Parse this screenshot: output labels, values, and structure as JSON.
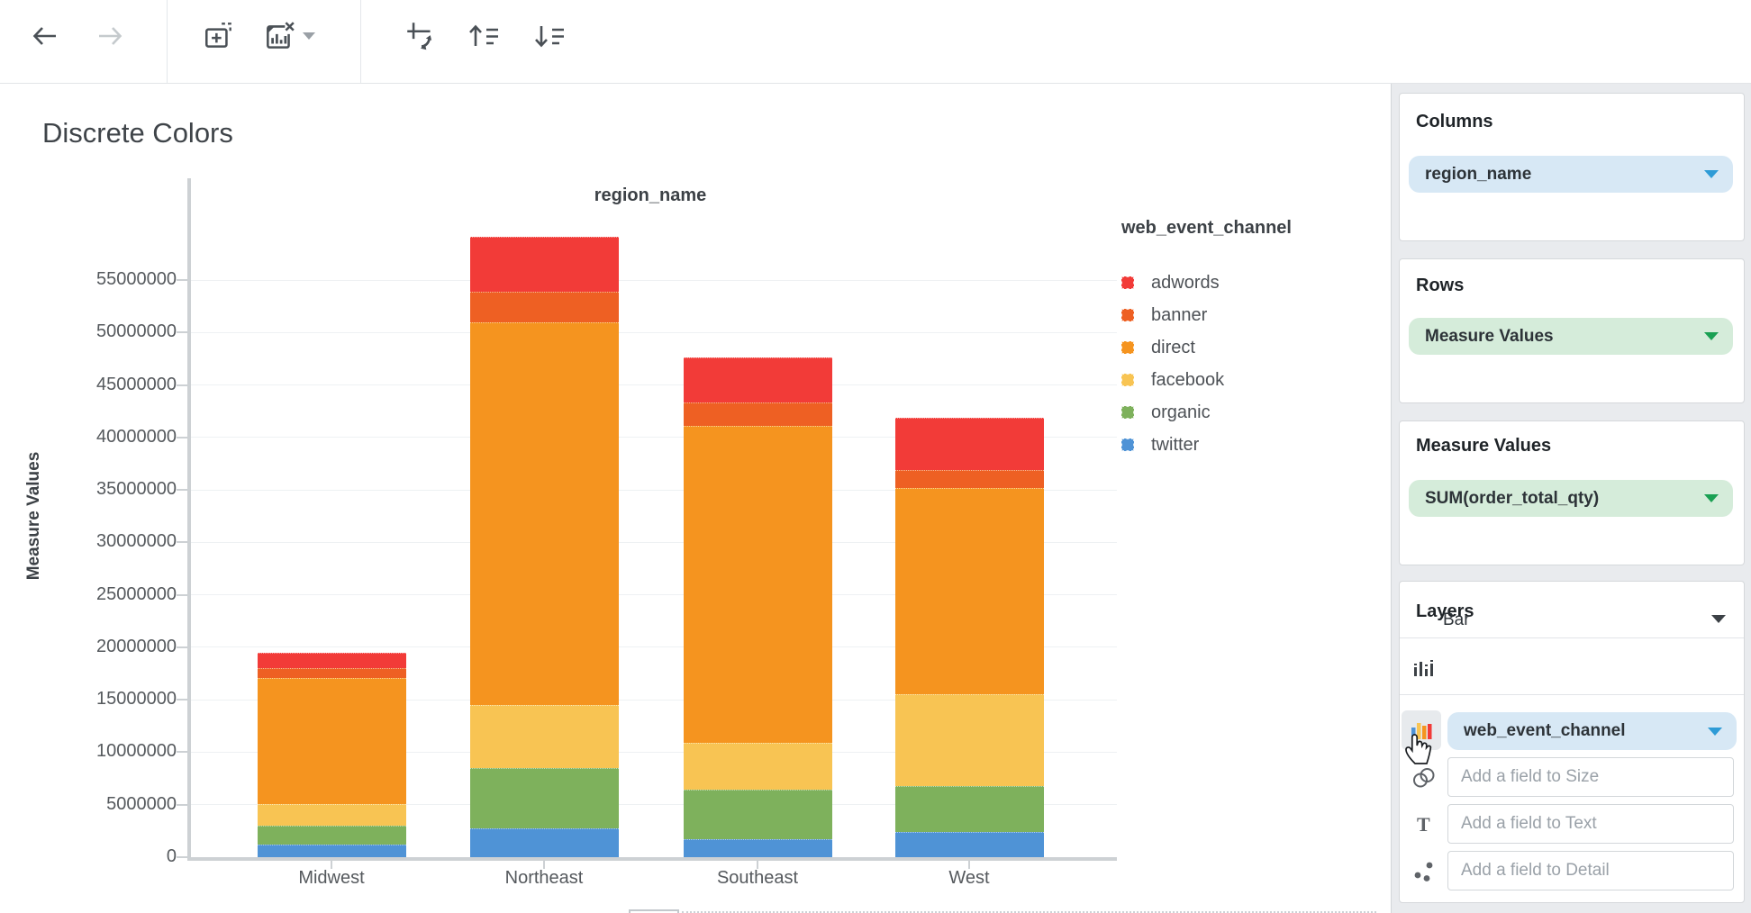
{
  "header": {
    "title": "Discrete Colors"
  },
  "toolbar": {
    "icons": [
      "back",
      "forward",
      "add-visualization",
      "remove-visualization",
      "remove-visualization-menu",
      "swap-axes",
      "sort-ascending",
      "sort-descending"
    ]
  },
  "chart_data": {
    "type": "bar",
    "stacked": true,
    "title": "region_name",
    "xlabel": "region_name",
    "ylabel": "Measure Values",
    "legend_title": "web_event_channel",
    "legend_position": "right",
    "grid": true,
    "categories": [
      "Midwest",
      "Northeast",
      "Southeast",
      "West"
    ],
    "series": [
      {
        "name": "adwords",
        "color": "#f23b38",
        "values": [
          1500000,
          5200000,
          4300000,
          5000000
        ]
      },
      {
        "name": "banner",
        "color": "#ee6023",
        "values": [
          950000,
          2900000,
          2200000,
          1700000
        ]
      },
      {
        "name": "direct",
        "color": "#f5941f",
        "values": [
          12000000,
          36500000,
          30200000,
          19700000
        ]
      },
      {
        "name": "facebook",
        "color": "#f8c453",
        "values": [
          2050000,
          6000000,
          4500000,
          8700000
        ]
      },
      {
        "name": "organic",
        "color": "#7eb15c",
        "values": [
          1800000,
          5750000,
          4700000,
          4400000
        ]
      },
      {
        "name": "twitter",
        "color": "#4f93d6",
        "values": [
          1200000,
          2750000,
          1700000,
          2400000
        ]
      }
    ],
    "stack_order_bottom_to_top": [
      "twitter",
      "organic",
      "facebook",
      "direct",
      "banner",
      "adwords"
    ],
    "ylim": [
      0,
      55000000
    ],
    "ytick_step": 5000000,
    "ytick_labels": [
      "0",
      "5000000",
      "10000000",
      "15000000",
      "20000000",
      "25000000",
      "30000000",
      "35000000",
      "40000000",
      "45000000",
      "50000000",
      "55000000"
    ]
  },
  "sidebar": {
    "columns": {
      "header": "Columns",
      "pill": {
        "label": "region_name",
        "type": "dimension"
      }
    },
    "rows": {
      "header": "Rows",
      "pill": {
        "label": "Measure Values",
        "type": "measure"
      }
    },
    "measure_values": {
      "header": "Measure Values",
      "pill": {
        "label": "SUM(order_total_qty)",
        "type": "measure"
      }
    },
    "layers": {
      "header": "Layers",
      "layer_type": "Bar",
      "color_field": {
        "label": "web_event_channel"
      },
      "size_placeholder": "Add a field to Size",
      "text_placeholder": "Add a field to Text",
      "detail_placeholder": "Add a field to Detail"
    }
  },
  "colors": {
    "dimension_pill_bg": "#d7e8f5",
    "dimension_accent": "#2e9bd6",
    "measure_pill_bg": "#d5ecda",
    "measure_accent": "#1aa053",
    "toolbar_icon": "#4a5056",
    "toolbar_icon_disabled": "#c5cacd"
  }
}
